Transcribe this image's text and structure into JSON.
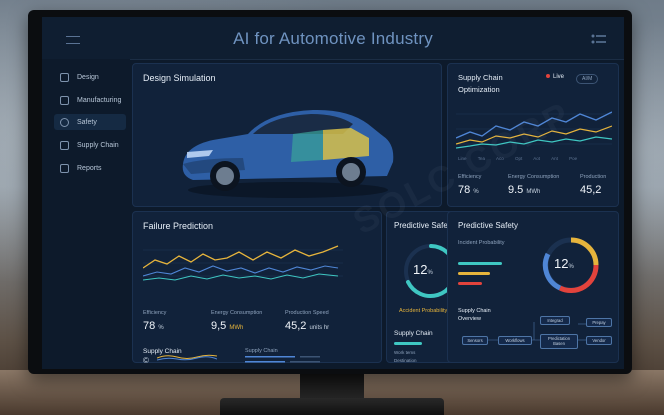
{
  "app": {
    "title": "AI for Automotive Industry"
  },
  "sidebar": {
    "items": [
      {
        "label": "Design",
        "icon": "car-icon"
      },
      {
        "label": "Manufacturing",
        "icon": "factory-icon"
      },
      {
        "label": "Safety",
        "icon": "search-icon"
      },
      {
        "label": "Supply Chain",
        "icon": "truck-icon"
      },
      {
        "label": "Reports",
        "icon": "report-icon"
      }
    ],
    "active": "Safety"
  },
  "design": {
    "title": "Design Simulation"
  },
  "supply_opt": {
    "title_line1": "Supply Chain",
    "title_line2": "Optimization",
    "live": "Live",
    "pill": "AI/M",
    "xticks": [
      "Line",
      "Tea",
      "Aco",
      "Opt",
      "Aot",
      "Ant",
      "Poe"
    ],
    "metrics": [
      {
        "label": "Efficiency",
        "value": "78",
        "unit": "%"
      },
      {
        "label": "Energy Consumption",
        "value": "9.5",
        "unit": "MWh"
      },
      {
        "label": "Production",
        "value": "45,2",
        "unit": ""
      }
    ]
  },
  "failure": {
    "title": "Failure Prediction",
    "metrics": [
      {
        "label": "Efficiency",
        "value": "78",
        "unit": "%"
      },
      {
        "label": "Energy Consumption",
        "value": "9,5",
        "unit": "MWh"
      },
      {
        "label": "Production Speed",
        "value": "45,2",
        "unit": "units hr"
      }
    ],
    "supply_label": "Supply Chain",
    "supply_label2": "Supply Chain",
    "copyright": "©"
  },
  "pred1": {
    "title": "Predictive Safety",
    "gauge_value": "12",
    "gauge_unit": "%",
    "gauge_label": "Accident Probability",
    "supply_title": "Supply Chain",
    "rows": [
      "Work tems",
      "Destination",
      "Results"
    ]
  },
  "pred2": {
    "title": "Predictive Safety",
    "incident_label": "Incident Probability",
    "gauge_value": "12",
    "gauge_unit": "%",
    "supply_title_line1": "Supply Chain",
    "supply_title_line2": "Overview",
    "nodes": [
      "Sensors",
      "Workflows",
      "Integrad",
      "Predictation Basen",
      "Prepay",
      "Vendor"
    ]
  },
  "watermark": "SOLC CORP",
  "colors": {
    "accent_orange": "#e6b43c",
    "accent_teal": "#3fc7c2",
    "accent_blue": "#4f86d6",
    "accent_red": "#e2433c",
    "accent_green": "#7bbf4e"
  }
}
